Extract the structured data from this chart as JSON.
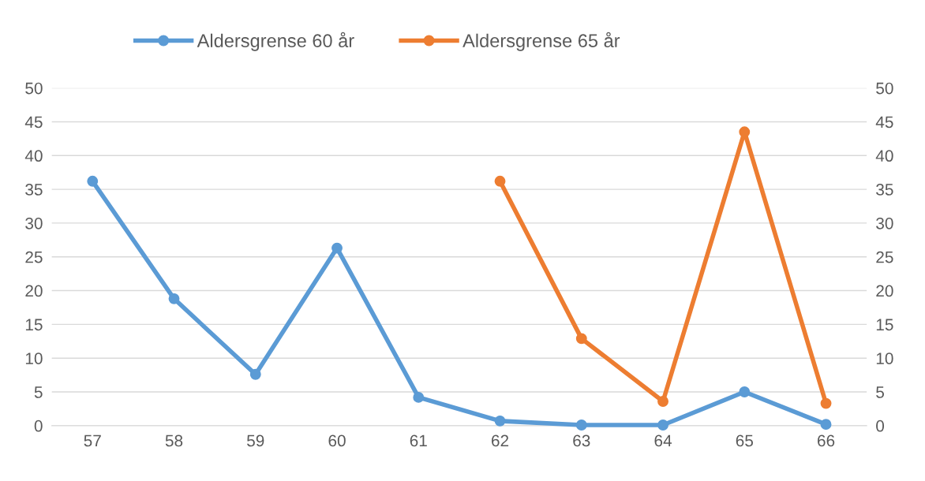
{
  "chart_data": {
    "type": "line",
    "categories": [
      "57",
      "58",
      "59",
      "60",
      "61",
      "62",
      "63",
      "64",
      "65",
      "66"
    ],
    "series": [
      {
        "name": "Aldersgrense 60 år",
        "color": "#5b9bd5",
        "values": [
          36.2,
          18.8,
          7.6,
          26.3,
          4.2,
          0.7,
          0.1,
          0.1,
          5.0,
          0.2
        ]
      },
      {
        "name": "Aldersgrense 65 år",
        "color": "#ed7d31",
        "values": [
          null,
          null,
          null,
          null,
          null,
          36.2,
          12.9,
          3.6,
          43.5,
          3.3
        ]
      }
    ],
    "ylim": [
      0,
      50
    ],
    "yticks": [
      0,
      5,
      10,
      15,
      20,
      25,
      30,
      35,
      40,
      45,
      50
    ],
    "y2lim": [
      0,
      50
    ],
    "y2ticks": [
      0,
      5,
      10,
      15,
      20,
      25,
      30,
      35,
      40,
      45,
      50
    ],
    "grid": "y",
    "legend": "top",
    "marker": "circle",
    "line_style": "solid"
  }
}
